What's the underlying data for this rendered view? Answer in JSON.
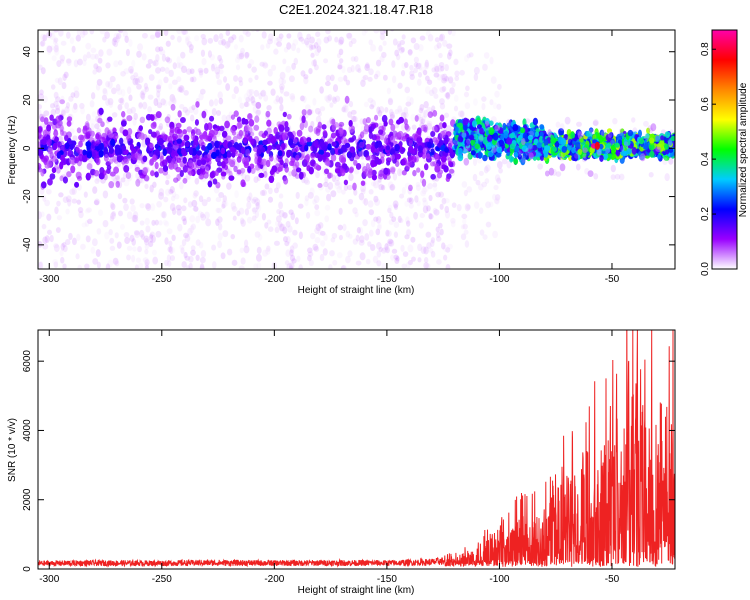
{
  "title": "C2E1.2024.321.18.47.R18",
  "chart_data": [
    {
      "type": "heatmap",
      "xlabel": "Height of straight line (km)",
      "ylabel": "Frequency (Hz)",
      "xlim": [
        -305,
        -22
      ],
      "ylim": [
        -50,
        49
      ],
      "xticks": [
        -300,
        -250,
        -200,
        -150,
        -100,
        -50
      ],
      "yticks": [
        -40,
        -20,
        0,
        20,
        40
      ],
      "colorbar": {
        "label": "Normalized spectral amplitude",
        "range": [
          0.0,
          0.87
        ],
        "ticks": [
          0.0,
          0.2,
          0.4,
          0.6,
          0.8
        ],
        "colors": [
          "#ffffff",
          "#9900ff",
          "#0000ff",
          "#00ccff",
          "#00ff00",
          "#ffff00",
          "#ff8800",
          "#ff0000",
          "#ff00aa"
        ]
      },
      "bands": [
        {
          "x": [
            -305,
            -120
          ],
          "center_hz": 0,
          "core_halfwidth_hz": 12,
          "scatter_halfwidth_hz": 50,
          "typical_amplitude": 0.1
        },
        {
          "x": [
            -120,
            -80
          ],
          "center_hz": 5,
          "core_halfwidth_hz": 7,
          "typical_amplitude": 0.3
        },
        {
          "x": [
            -80,
            -22
          ],
          "center_hz": 1,
          "core_halfwidth_hz": 4,
          "typical_amplitude": 0.4
        }
      ],
      "peak": {
        "x": -58,
        "y": 1,
        "amplitude": 0.85
      },
      "grid": false
    },
    {
      "type": "line",
      "xlabel": "Height of straight line (km)",
      "ylabel": "SNR (10 * v/v)",
      "xlim": [
        -305,
        -22
      ],
      "ylim": [
        0,
        6900
      ],
      "xticks": [
        -300,
        -250,
        -200,
        -150,
        -100,
        -50
      ],
      "yticks": [
        0,
        2000,
        4000,
        6000
      ],
      "grid": false,
      "series": [
        {
          "color": "#ee2222",
          "x": [
            -305,
            -280,
            -250,
            -230,
            -200,
            -170,
            -150,
            -130,
            -120,
            -115,
            -110,
            -105,
            -100,
            -95,
            -90,
            -85,
            -80,
            -75,
            -70,
            -65,
            -60,
            -55,
            -50,
            -45,
            -40,
            -35,
            -30,
            -25,
            -22
          ],
          "y": [
            180,
            190,
            185,
            200,
            190,
            195,
            190,
            220,
            300,
            450,
            700,
            900,
            1100,
            1050,
            1400,
            1300,
            1700,
            2200,
            2500,
            2600,
            3600,
            3300,
            4000,
            4200,
            6900,
            3800,
            4800,
            4600,
            3900
          ]
        }
      ]
    }
  ]
}
